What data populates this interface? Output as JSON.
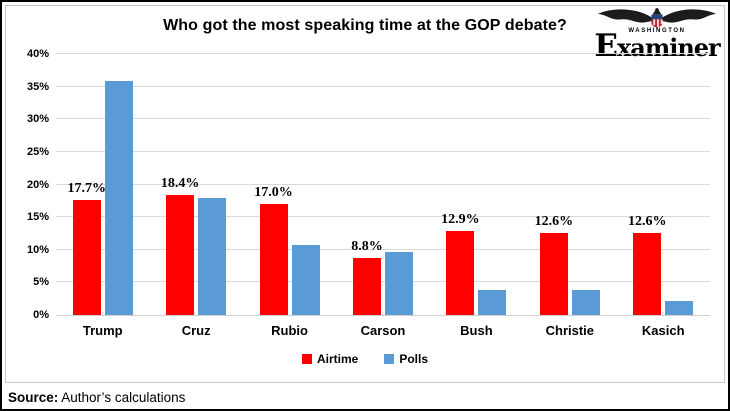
{
  "title": "Who got the most speaking time at the GOP debate?",
  "logo": {
    "top_text": "WASHINGTON",
    "name": "Examiner"
  },
  "source": {
    "label": "Source:",
    "text": "Author’s calculations"
  },
  "chart_data": {
    "type": "bar",
    "title": "Who got the most speaking time at the GOP debate?",
    "categories": [
      "Trump",
      "Cruz",
      "Rubio",
      "Carson",
      "Bush",
      "Christie",
      "Kasich"
    ],
    "series": [
      {
        "name": "Airtime",
        "color": "#fe0000",
        "values": [
          17.7,
          18.4,
          17.0,
          8.8,
          12.9,
          12.6,
          12.6
        ],
        "data_labels": [
          "17.7%",
          "18.4%",
          "17.0%",
          "8.8%",
          "12.9%",
          "12.6%",
          "12.6%"
        ]
      },
      {
        "name": "Polls",
        "color": "#5b9bd5",
        "values": [
          35.8,
          18.0,
          10.8,
          9.7,
          3.9,
          3.9,
          2.1
        ],
        "data_labels": null
      }
    ],
    "ylim": [
      0,
      40
    ],
    "ytick_step": 5,
    "ytick_labels": [
      "0%",
      "5%",
      "10%",
      "15%",
      "20%",
      "25%",
      "30%",
      "35%",
      "40%"
    ],
    "grid": true,
    "grid_color": "#d9d9d9",
    "legend_position": "bottom"
  }
}
